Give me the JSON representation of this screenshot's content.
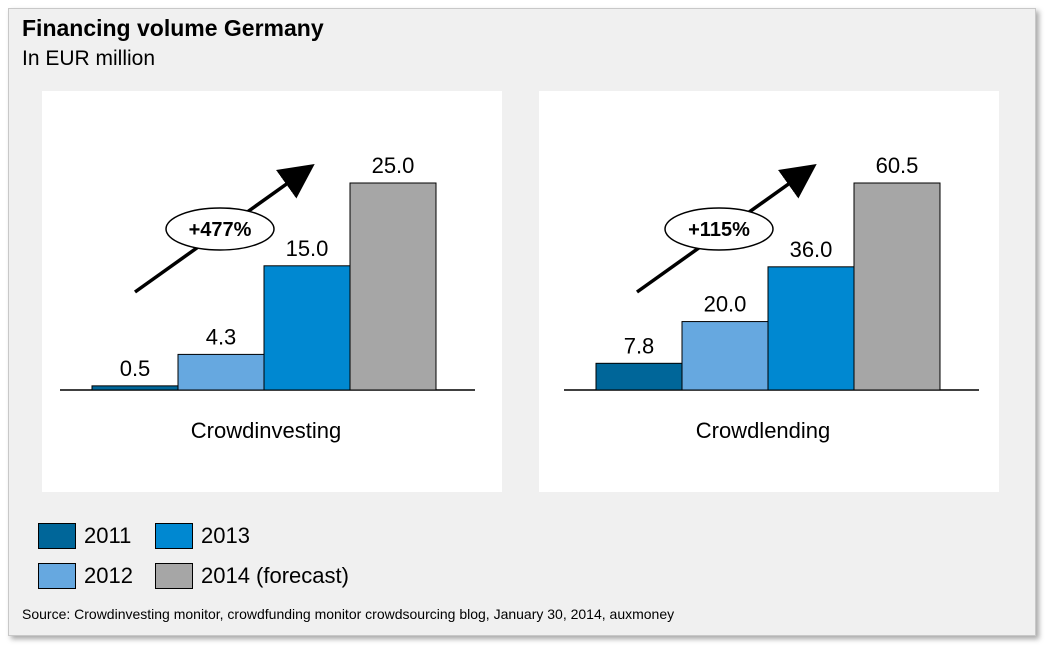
{
  "header": {
    "title": "Financing volume Germany",
    "subtitle": "In EUR million"
  },
  "colors": {
    "2011": "#006699",
    "2012": "#66a8e0",
    "2013": "#0088d1",
    "2014 (forecast)": "#a6a6a6"
  },
  "legend": [
    {
      "label": "2011",
      "color": "#006699"
    },
    {
      "label": "2013",
      "color": "#0088d1"
    },
    {
      "label": "2012",
      "color": "#66a8e0"
    },
    {
      "label": "2014 (forecast)",
      "color": "#a6a6a6"
    }
  ],
  "source": "Source:  Crowdinvesting monitor, crowdfunding monitor crowdsourcing blog, January 30, 2014,  auxmoney",
  "chart_data": [
    {
      "type": "bar",
      "title": "Crowdinvesting",
      "categories": [
        "2011",
        "2012",
        "2013",
        "2014 (forecast)"
      ],
      "values": [
        0.5,
        4.3,
        15.0,
        25.0
      ],
      "value_labels": [
        "0.5",
        "4.3",
        "15.0",
        "25.0"
      ],
      "annotation": "+477%",
      "ylim": [
        0,
        25
      ]
    },
    {
      "type": "bar",
      "title": "Crowdlending",
      "categories": [
        "2011",
        "2012",
        "2013",
        "2014 (forecast)"
      ],
      "values": [
        7.8,
        20.0,
        36.0,
        60.5
      ],
      "value_labels": [
        "7.8",
        "20.0",
        "36.0",
        "60.5"
      ],
      "annotation": "+115%",
      "ylim": [
        0,
        60.5
      ]
    }
  ]
}
